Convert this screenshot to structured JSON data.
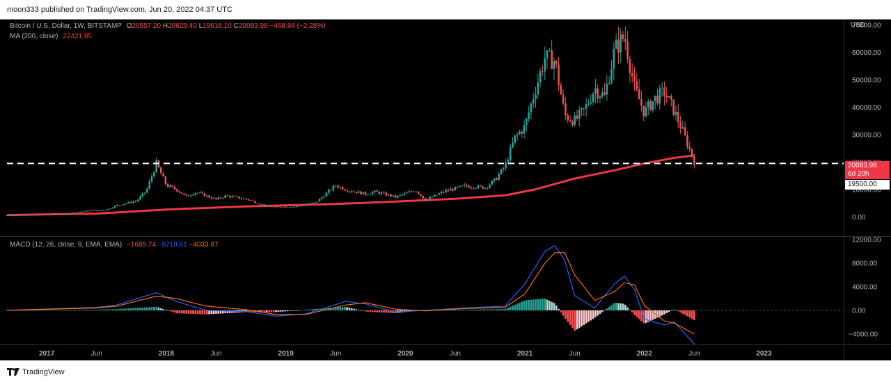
{
  "header": {
    "published_text": "moon333 published on TradingView.com, Jun 20, 2022 04:37 UTC"
  },
  "footer": {
    "brand": "TradingView"
  },
  "legend": {
    "symbol": "Bitcoin / U.S. Dollar, 1W, BITSTAMP",
    "o_label": "O",
    "o_value": "20557.20",
    "h_label": "H",
    "h_value": "20629.40",
    "l_label": "L",
    "l_value": "19616.10",
    "c_label": "C",
    "c_value": "20083.98",
    "change": "−468.84 (−2.28%)",
    "ma_label": "MA (200, close)",
    "ma_value": "22421.85",
    "macd_label": "MACD (12, 26, close, 9, EMA, EMA)",
    "macd_hist": "−1685.74",
    "macd_line": "−5719.61",
    "macd_signal": "−4033.87"
  },
  "price_axis": {
    "currency": "USD",
    "last_price": "20083.98",
    "countdown": "6d 20h",
    "level_label": "19500.00"
  },
  "colors": {
    "up": "#26a69a",
    "down": "#ef5350",
    "ma": "#f23645",
    "macd_line": "#2962ff",
    "signal_line": "#ff6d00",
    "background": "#000000",
    "axis_text": "#b2b5be"
  },
  "chart_data": [
    {
      "type": "candlestick",
      "title": "Bitcoin / U.S. Dollar, 1W, BITSTAMP",
      "x_range": [
        "2016-09",
        "2023-09"
      ],
      "y_range": [
        -7000,
        72000
      ],
      "y_ticks": [
        "0.00",
        "10000.00",
        "20000.00",
        "30000.00",
        "40000.00",
        "50000.00",
        "60000.00",
        "70000.00"
      ],
      "x_ticks": [
        "2017",
        "Jun",
        "2018",
        "Jun",
        "2019",
        "Jun",
        "2020",
        "Jun",
        "2021",
        "Jun",
        "2022",
        "Jun",
        "2023"
      ],
      "horizontal_line": 19500,
      "series": [
        {
          "name": "Bitcoin / U.S. Dollar",
          "style": "candles",
          "anchors": [
            [
              "2016-09",
              600
            ],
            [
              "2016-12",
              900
            ],
            [
              "2017-03",
              1100
            ],
            [
              "2017-05",
              2200
            ],
            [
              "2017-07",
              2600
            ],
            [
              "2017-08",
              4200
            ],
            [
              "2017-10",
              5800
            ],
            [
              "2017-11",
              9500
            ],
            [
              "2017-12",
              19500
            ],
            [
              "2018-01",
              11500
            ],
            [
              "2018-02",
              10000
            ],
            [
              "2018-03",
              7500
            ],
            [
              "2018-04",
              9000
            ],
            [
              "2018-06",
              6400
            ],
            [
              "2018-07",
              7700
            ],
            [
              "2018-09",
              6500
            ],
            [
              "2018-11",
              4000
            ],
            [
              "2018-12",
              3600
            ],
            [
              "2019-02",
              3800
            ],
            [
              "2019-04",
              5200
            ],
            [
              "2019-06",
              11500
            ],
            [
              "2019-07",
              10000
            ],
            [
              "2019-09",
              8300
            ],
            [
              "2019-10",
              9200
            ],
            [
              "2019-12",
              7200
            ],
            [
              "2020-02",
              9800
            ],
            [
              "2020-03",
              6200
            ],
            [
              "2020-05",
              9400
            ],
            [
              "2020-07",
              11300
            ],
            [
              "2020-09",
              10700
            ],
            [
              "2020-10",
              13500
            ],
            [
              "2020-11",
              18500
            ],
            [
              "2020-12",
              28900
            ],
            [
              "2021-01",
              33000
            ],
            [
              "2021-02",
              46000
            ],
            [
              "2021-03",
              58000
            ],
            [
              "2021-04",
              57000
            ],
            [
              "2021-05",
              37000
            ],
            [
              "2021-06",
              35000
            ],
            [
              "2021-07",
              39000
            ],
            [
              "2021-08",
              47000
            ],
            [
              "2021-09",
              43800
            ],
            [
              "2021-10",
              61000
            ],
            [
              "2021-11",
              66000
            ],
            [
              "2021-12",
              47000
            ],
            [
              "2022-01",
              38000
            ],
            [
              "2022-02",
              43000
            ],
            [
              "2022-03",
              45500
            ],
            [
              "2022-04",
              38500
            ],
            [
              "2022-05",
              29800
            ],
            [
              "2022-06",
              20084
            ]
          ]
        },
        {
          "name": "MA (200, close)",
          "style": "line",
          "points": [
            [
              "2016-09",
              700
            ],
            [
              "2017-06",
              1200
            ],
            [
              "2018-01",
              2700
            ],
            [
              "2018-09",
              3800
            ],
            [
              "2019-06",
              4700
            ],
            [
              "2019-12",
              5600
            ],
            [
              "2020-06",
              6600
            ],
            [
              "2020-11",
              7900
            ],
            [
              "2021-02",
              10000
            ],
            [
              "2021-06",
              14000
            ],
            [
              "2021-10",
              17000
            ],
            [
              "2022-01",
              19500
            ],
            [
              "2022-04",
              21500
            ],
            [
              "2022-06",
              22422
            ]
          ]
        }
      ]
    },
    {
      "type": "bar",
      "title": "MACD (12, 26, close, 9, EMA, EMA)",
      "y_range": [
        -5800,
        12500
      ],
      "y_ticks": [
        "12000.00",
        "8000.00",
        "4000.00",
        "0.00",
        "−4000.00"
      ],
      "series": [
        {
          "name": "MACD",
          "style": "line",
          "points": [
            [
              "2016-09",
              0
            ],
            [
              "2017-06",
              500
            ],
            [
              "2017-08",
              900
            ],
            [
              "2017-12",
              3000
            ],
            [
              "2018-02",
              1500
            ],
            [
              "2018-05",
              0
            ],
            [
              "2018-09",
              -200
            ],
            [
              "2018-12",
              -1000
            ],
            [
              "2019-03",
              -600
            ],
            [
              "2019-07",
              1500
            ],
            [
              "2019-09",
              1100
            ],
            [
              "2019-12",
              -300
            ],
            [
              "2020-03",
              0
            ],
            [
              "2020-07",
              400
            ],
            [
              "2020-11",
              700
            ],
            [
              "2021-01",
              4500
            ],
            [
              "2021-03",
              10000
            ],
            [
              "2021-04",
              11000
            ],
            [
              "2021-05",
              8500
            ],
            [
              "2021-06",
              2500
            ],
            [
              "2021-08",
              400
            ],
            [
              "2021-10",
              4500
            ],
            [
              "2021-11",
              5800
            ],
            [
              "2021-12",
              3500
            ],
            [
              "2022-01",
              -1500
            ],
            [
              "2022-03",
              -2500
            ],
            [
              "2022-04",
              -2000
            ],
            [
              "2022-06",
              -5720
            ]
          ]
        },
        {
          "name": "Signal",
          "style": "line",
          "points": [
            [
              "2016-09",
              0
            ],
            [
              "2017-06",
              400
            ],
            [
              "2017-08",
              700
            ],
            [
              "2017-12",
              2400
            ],
            [
              "2018-02",
              2000
            ],
            [
              "2018-05",
              700
            ],
            [
              "2018-09",
              100
            ],
            [
              "2018-12",
              -700
            ],
            [
              "2019-03",
              -700
            ],
            [
              "2019-07",
              900
            ],
            [
              "2019-09",
              1300
            ],
            [
              "2019-12",
              200
            ],
            [
              "2020-03",
              -100
            ],
            [
              "2020-07",
              300
            ],
            [
              "2020-11",
              500
            ],
            [
              "2021-01",
              2800
            ],
            [
              "2021-03",
              8000
            ],
            [
              "2021-04",
              9800
            ],
            [
              "2021-05",
              9800
            ],
            [
              "2021-06",
              6000
            ],
            [
              "2021-08",
              1700
            ],
            [
              "2021-10",
              3200
            ],
            [
              "2021-11",
              4700
            ],
            [
              "2021-12",
              4300
            ],
            [
              "2022-01",
              800
            ],
            [
              "2022-03",
              -1800
            ],
            [
              "2022-04",
              -2200
            ],
            [
              "2022-06",
              -4034
            ]
          ]
        },
        {
          "name": "Histogram",
          "style": "bars",
          "derived_from": "MACD − Signal"
        }
      ]
    }
  ]
}
